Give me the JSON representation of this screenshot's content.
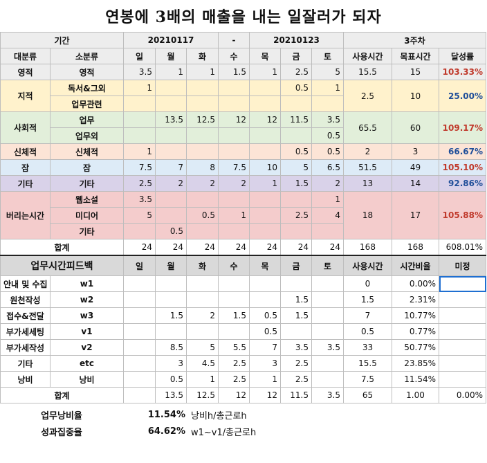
{
  "title": "연봉에 3배의 매출을 내는 일잘러가 되자",
  "header": {
    "period_label": "기간",
    "start_date": "20210117",
    "dash": "-",
    "end_date": "20210123",
    "week": "3주차",
    "cat_label": "대분류",
    "subcat_label": "소분류",
    "days": [
      "일",
      "월",
      "화",
      "수",
      "목",
      "금",
      "토"
    ],
    "used_label": "사용시간",
    "goal_label": "목표시간",
    "rate_label": "달성률"
  },
  "rows": [
    {
      "cat": "영적",
      "sub": "영적",
      "v": [
        "3.5",
        "1",
        "1",
        "1.5",
        "1",
        "2.5",
        "5"
      ],
      "used": "15.5",
      "goal": "15",
      "rate": "103.33%"
    },
    {
      "cat": "지적",
      "sub": "독서&그외",
      "v": [
        "1",
        "",
        "",
        "",
        "",
        "0.5",
        "1"
      ],
      "used": "2.5",
      "goal": "10",
      "rate": "25.00%"
    },
    {
      "sub": "업무관련",
      "v": [
        "",
        "",
        "",
        "",
        "",
        "",
        ""
      ]
    },
    {
      "cat": "사회적",
      "sub": "업무",
      "v": [
        "",
        "13.5",
        "12.5",
        "12",
        "12",
        "11.5",
        "3.5"
      ],
      "used": "65.5",
      "goal": "60",
      "rate": "109.17%"
    },
    {
      "sub": "업무외",
      "v": [
        "",
        "",
        "",
        "",
        "",
        "",
        "0.5"
      ]
    },
    {
      "cat": "신체적",
      "sub": "신체적",
      "v": [
        "1",
        "",
        "",
        "",
        "",
        "0.5",
        "0.5"
      ],
      "used": "2",
      "goal": "3",
      "rate": "66.67%"
    },
    {
      "cat": "잠",
      "sub": "잠",
      "v": [
        "7.5",
        "7",
        "8",
        "7.5",
        "10",
        "5",
        "6.5"
      ],
      "used": "51.5",
      "goal": "49",
      "rate": "105.10%"
    },
    {
      "cat": "기타",
      "sub": "기타",
      "v": [
        "2.5",
        "2",
        "2",
        "2",
        "1",
        "1.5",
        "2"
      ],
      "used": "13",
      "goal": "14",
      "rate": "92.86%"
    },
    {
      "cat": "버리는시간",
      "sub": "웹소설",
      "v": [
        "3.5",
        "",
        "",
        "",
        "",
        "",
        "1"
      ],
      "used": "18",
      "goal": "17",
      "rate": "105.88%"
    },
    {
      "sub": "미디어",
      "v": [
        "5",
        "",
        "0.5",
        "1",
        "",
        "2.5",
        "4"
      ]
    },
    {
      "sub": "기타",
      "v": [
        "",
        "0.5",
        "",
        "",
        "",
        "",
        ""
      ]
    }
  ],
  "total": {
    "label": "합계",
    "v": [
      "24",
      "24",
      "24",
      "24",
      "24",
      "24",
      "24"
    ],
    "used": "168",
    "goal": "168",
    "rate": "608.01%"
  },
  "feedback_header": {
    "label": "업무시간피드백",
    "days": [
      "일",
      "월",
      "화",
      "수",
      "목",
      "금",
      "토"
    ],
    "used_label": "사용시간",
    "ratio_label": "시간비율",
    "undecided_label": "미정"
  },
  "feedback_rows": [
    {
      "name": "안내 및 수집",
      "code": "w1",
      "v": [
        "",
        "",
        "",
        "",
        "",
        "",
        ""
      ],
      "used": "0",
      "ratio": "0.00%"
    },
    {
      "name": "원천작성",
      "code": "w2",
      "v": [
        "",
        "",
        "",
        "",
        "",
        "1.5",
        ""
      ],
      "used": "1.5",
      "ratio": "2.31%"
    },
    {
      "name": "접수&전달",
      "code": "w3",
      "v": [
        "",
        "1.5",
        "2",
        "1.5",
        "0.5",
        "1.5",
        ""
      ],
      "used": "7",
      "ratio": "10.77%"
    },
    {
      "name": "부가세세팅",
      "code": "v1",
      "v": [
        "",
        "",
        "",
        "",
        "0.5",
        "",
        ""
      ],
      "used": "0.5",
      "ratio": "0.77%"
    },
    {
      "name": "부가세작성",
      "code": "v2",
      "v": [
        "",
        "8.5",
        "5",
        "5.5",
        "7",
        "3.5",
        "3.5"
      ],
      "used": "33",
      "ratio": "50.77%"
    },
    {
      "name": "기타",
      "code": "etc",
      "v": [
        "",
        "3",
        "4.5",
        "2.5",
        "3",
        "2.5",
        ""
      ],
      "used": "15.5",
      "ratio": "23.85%"
    },
    {
      "name": "낭비",
      "code": "낭비",
      "v": [
        "",
        "0.5",
        "1",
        "2.5",
        "1",
        "2.5",
        ""
      ],
      "used": "7.5",
      "ratio": "11.54%"
    }
  ],
  "feedback_total": {
    "label": "합계",
    "v": [
      "",
      "13.5",
      "12.5",
      "12",
      "12",
      "11.5",
      "3.5"
    ],
    "used": "65",
    "ratio": "1.00",
    "extra": "0.00%"
  },
  "footer": [
    {
      "label": "업무낭비율",
      "pct": "11.54%",
      "note": "낭비h/총근로h"
    },
    {
      "label": "성과집중율",
      "pct": "64.62%",
      "note": "w1~v1/총근로h"
    }
  ],
  "colors": {
    "red": "#c0392b",
    "blue": "#1f4e99",
    "selection": "#1f6fd1"
  }
}
